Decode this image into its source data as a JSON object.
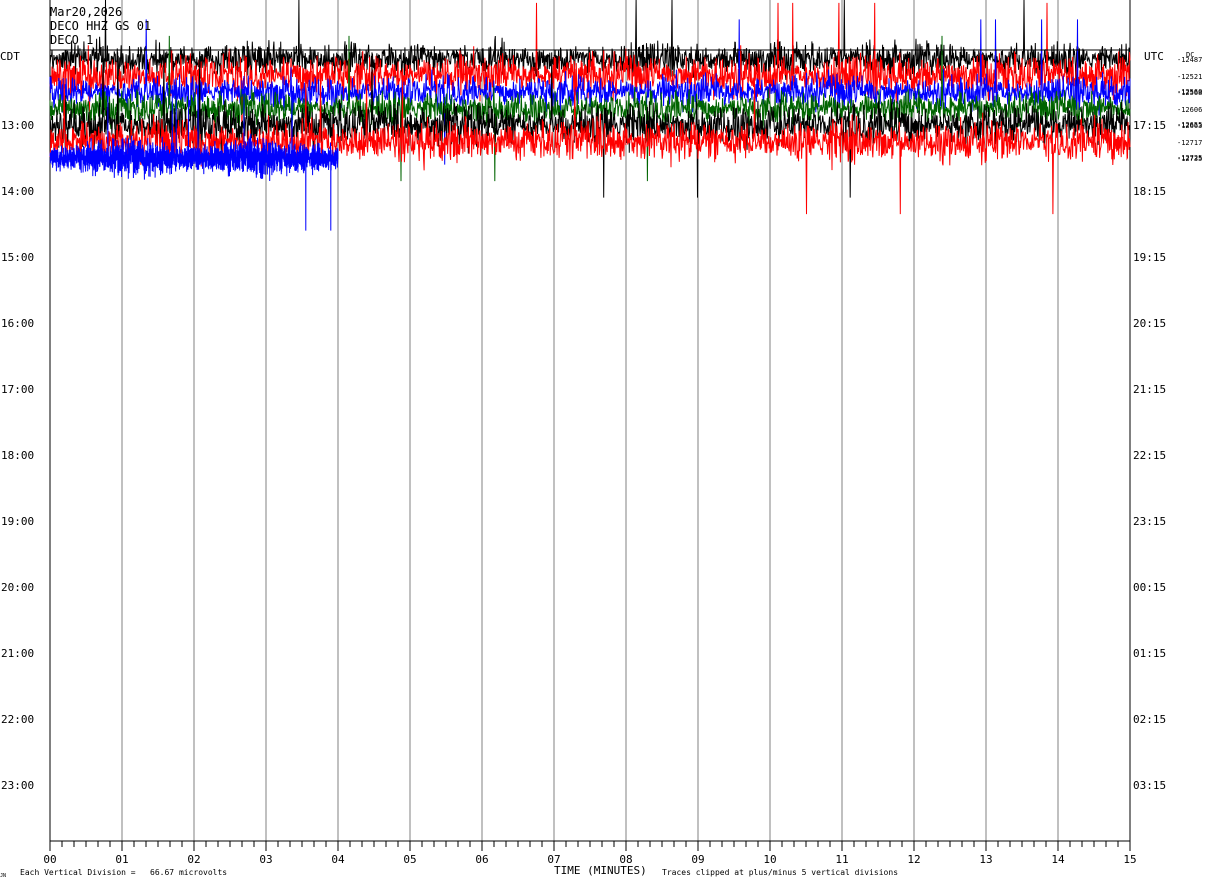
{
  "header": {
    "date": "Mar20,2026",
    "station": "DECO HHZ GS 01",
    "third_line": "DECO 1"
  },
  "timezones": {
    "left": "CDT",
    "right": "UTC"
  },
  "dc": {
    "label": "DC",
    "values": [
      "-12487",
      "-12521",
      "-12560",
      "-12568",
      "-12606",
      "-12655",
      "-12663",
      "-12717",
      "-12725",
      "-12735"
    ]
  },
  "footer": {
    "division": "Each Vertical Division =   66.67 microvolts",
    "clip": "Traces clipped at plus/minus 5 vertical divisions",
    "corner": "JN"
  },
  "colors": {
    "trace_cycle": [
      "#000000",
      "#ff0000",
      "#0000ff",
      "#006400"
    ]
  },
  "chart_data": {
    "type": "line",
    "subtype": "helicorder",
    "xlabel": "TIME (MINUTES)",
    "x_ticks": [
      "00",
      "01",
      "02",
      "03",
      "04",
      "05",
      "06",
      "07",
      "08",
      "09",
      "10",
      "11",
      "12",
      "13",
      "14",
      "15"
    ],
    "xlim": [
      0,
      15
    ],
    "rows_left": [
      "13:00",
      "14:00",
      "15:00",
      "16:00",
      "17:00",
      "18:00",
      "19:00",
      "20:00",
      "21:00",
      "22:00",
      "23:00"
    ],
    "rows_right": [
      "17:15",
      "18:15",
      "19:15",
      "20:15",
      "21:15",
      "22:15",
      "23:15",
      "00:15",
      "01:15",
      "02:15",
      "03:15"
    ],
    "grid": true,
    "series": [
      {
        "color": "#000000",
        "row_start": "12:00",
        "row_end": "12:15",
        "amplitude_divisions": 4
      },
      {
        "color": "#ff0000",
        "row_start": "12:15",
        "row_end": "12:30",
        "amplitude_divisions": 5
      },
      {
        "color": "#0000ff",
        "row_start": "12:30",
        "row_end": "12:45",
        "amplitude_divisions": 4
      },
      {
        "color": "#006400",
        "row_start": "12:45",
        "row_end": "13:00",
        "amplitude_divisions": 4
      },
      {
        "color": "#000000",
        "row_start": "13:00",
        "row_end": "13:15",
        "amplitude_divisions": 5
      },
      {
        "color": "#ff0000",
        "row_start": "13:15",
        "row_end": "13:30",
        "amplitude_divisions": 5
      },
      {
        "color": "#0000ff",
        "row_start": "13:30",
        "row_end": "13:45",
        "amplitude_divisions": 4,
        "ends_at_minute": 4
      }
    ]
  }
}
